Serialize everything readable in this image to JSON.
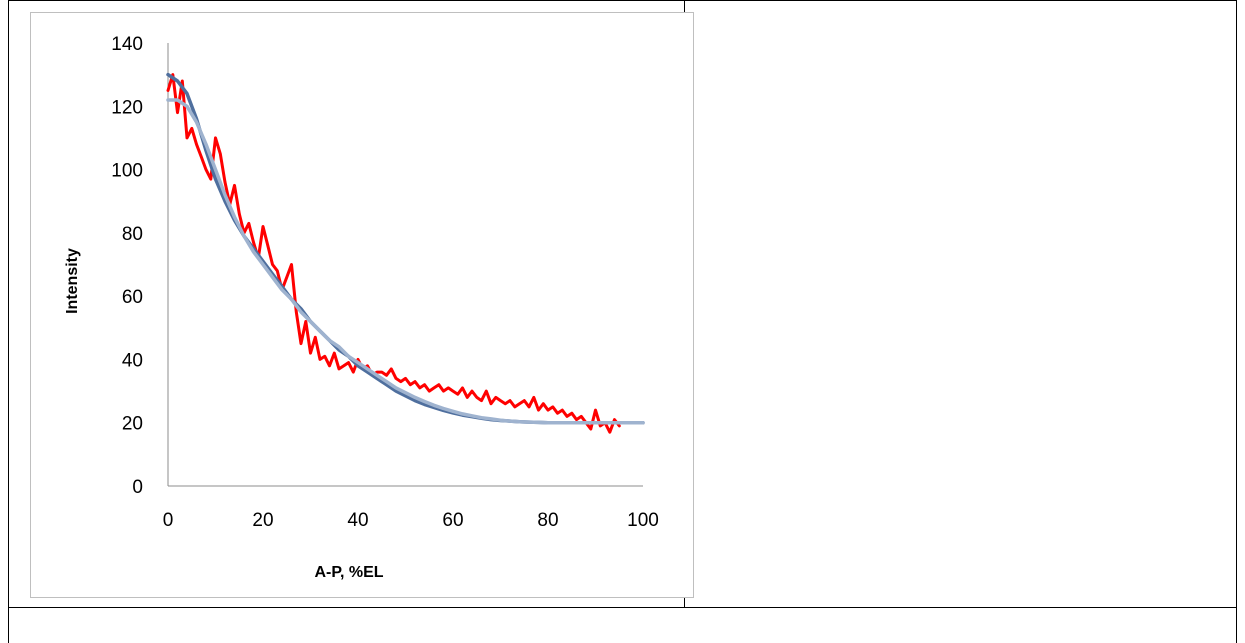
{
  "chart_data": {
    "type": "line",
    "title": "",
    "xlabel": "A-P, %EL",
    "ylabel": "Intensity",
    "xlim": [
      0,
      100
    ],
    "ylim": [
      0,
      140
    ],
    "xticks": [
      0,
      20,
      40,
      60,
      80,
      100
    ],
    "yticks": [
      0,
      20,
      40,
      60,
      80,
      100,
      120,
      140
    ],
    "grid": false,
    "legend": "none",
    "series": [
      {
        "color": "#ff0000",
        "x": [
          0,
          1,
          2,
          3,
          4,
          5,
          6,
          7,
          8,
          9,
          10,
          11,
          12,
          13,
          14,
          15,
          16,
          17,
          18,
          19,
          20,
          21,
          22,
          23,
          24,
          25,
          26,
          27,
          28,
          29,
          30,
          31,
          32,
          33,
          34,
          35,
          36,
          37,
          38,
          39,
          40,
          41,
          42,
          43,
          44,
          45,
          46,
          47,
          48,
          49,
          50,
          51,
          52,
          53,
          54,
          55,
          56,
          57,
          58,
          59,
          60,
          61,
          62,
          63,
          64,
          65,
          66,
          67,
          68,
          69,
          70,
          71,
          72,
          73,
          74,
          75,
          76,
          77,
          78,
          79,
          80,
          81,
          82,
          83,
          84,
          85,
          86,
          87,
          88,
          89,
          90,
          91,
          92,
          93,
          94,
          95
        ],
        "y": [
          125,
          130,
          118,
          128,
          110,
          113,
          108,
          104,
          100,
          97,
          110,
          105,
          96,
          89,
          95,
          86,
          80,
          83,
          77,
          72,
          82,
          76,
          70,
          68,
          62,
          66,
          70,
          55,
          45,
          52,
          42,
          47,
          40,
          41,
          38,
          42,
          37,
          38,
          39,
          36,
          40,
          37,
          38,
          35,
          36,
          36,
          35,
          37,
          34,
          33,
          34,
          32,
          33,
          31,
          32,
          30,
          31,
          32,
          30,
          31,
          30,
          29,
          31,
          28,
          30,
          28,
          27,
          30,
          26,
          28,
          27,
          26,
          27,
          25,
          26,
          27,
          25,
          28,
          24,
          26,
          24,
          25,
          23,
          24,
          22,
          23,
          21,
          22,
          20,
          18,
          24,
          19,
          20,
          17,
          21,
          19
        ]
      },
      {
        "color": "#4f6f9e",
        "x": [
          0,
          2,
          4,
          6,
          8,
          10,
          12,
          14,
          16,
          18,
          20,
          22,
          24,
          26,
          28,
          30,
          32,
          34,
          36,
          38,
          40,
          42,
          44,
          46,
          48,
          50,
          52,
          54,
          56,
          58,
          60,
          62,
          64,
          66,
          68,
          70,
          72,
          74,
          76,
          78,
          80,
          82,
          84,
          86,
          88,
          90,
          92,
          94,
          96,
          98,
          100
        ],
        "y": [
          130,
          128,
          124,
          116,
          106,
          97,
          90,
          84,
          79,
          75,
          71,
          67,
          63,
          59,
          56,
          52,
          49,
          46,
          43,
          41,
          38,
          36,
          34,
          32,
          30,
          28.5,
          27,
          25.8,
          24.8,
          23.9,
          23.1,
          22.4,
          21.9,
          21.4,
          21.0,
          20.7,
          20.5,
          20.3,
          20.2,
          20.1,
          20.0,
          20,
          20,
          20,
          20,
          20,
          20,
          20,
          20,
          20,
          20
        ]
      },
      {
        "color": "#9fb3cf",
        "x": [
          0,
          2,
          4,
          6,
          8,
          10,
          12,
          14,
          16,
          18,
          20,
          22,
          24,
          26,
          28,
          30,
          32,
          34,
          36,
          38,
          40,
          42,
          44,
          46,
          48,
          50,
          52,
          54,
          56,
          58,
          60,
          62,
          64,
          66,
          68,
          70,
          72,
          74,
          76,
          78,
          80,
          82,
          84,
          86,
          88,
          90,
          92,
          94,
          96,
          98,
          100
        ],
        "y": [
          122,
          122,
          120,
          115,
          108,
          100,
          92,
          85,
          79,
          74,
          70,
          66,
          62,
          59,
          55,
          52,
          49,
          46,
          44,
          41,
          39,
          37,
          35,
          33,
          31,
          29.5,
          28,
          26.7,
          25.5,
          24.5,
          23.6,
          22.8,
          22.2,
          21.6,
          21.2,
          20.8,
          20.5,
          20.3,
          20.2,
          20.1,
          20,
          20,
          20,
          20,
          20,
          20,
          20,
          20,
          20,
          20,
          20
        ]
      }
    ]
  }
}
